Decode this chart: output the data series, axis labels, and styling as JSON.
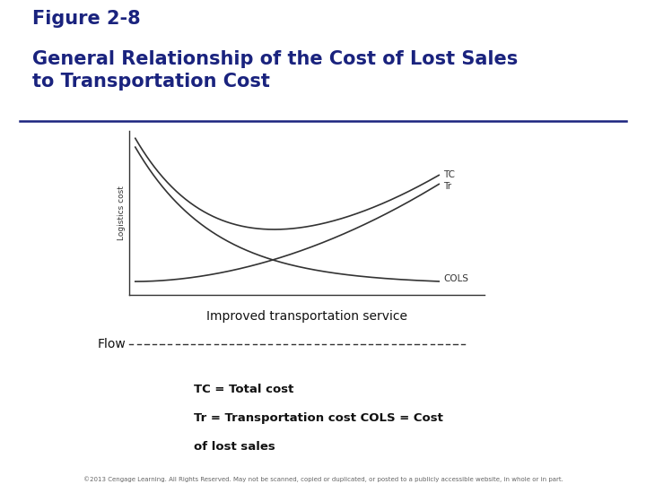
{
  "title_line1": "Figure 2-8",
  "title_line2": "General Relationship of the Cost of Lost Sales\nto Transportation Cost",
  "title_color": "#1a237e",
  "title_fontsize1": 15,
  "title_fontsize2": 15,
  "bg_color": "#ffffff",
  "chart_ylabel": "Logistics cost",
  "chart_xlabel": "Improved transportation service",
  "flow_label": "Flow",
  "footer_text": "©2013 Cengage Learning. All Rights Reserved. May not be scanned, copied or duplicated, or posted to a publicly accessible website, in whole or in part.",
  "curve_color": "#333333",
  "tc_label": "TC",
  "tr_label": "Tr",
  "cols_label": "COLS",
  "separator_color": "#1a237e",
  "legend_line1": "TC = Total cost",
  "legend_line2": "Tr = Transportation cost COLS = Cost",
  "legend_line3": "of lost sales"
}
